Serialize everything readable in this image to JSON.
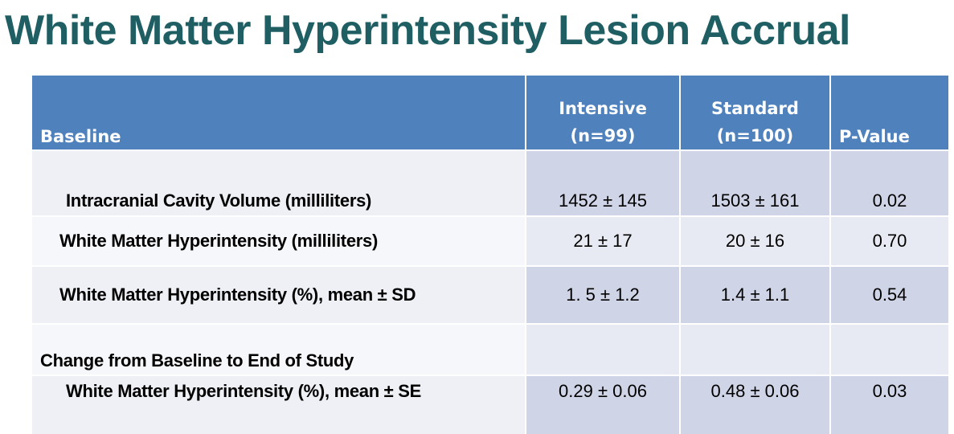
{
  "title": "White Matter Hyperintensity Lesion Accrual",
  "table": {
    "headers": {
      "label": "Baseline",
      "intensive_line1": "Intensive",
      "intensive_line2": "(n=99)",
      "standard_line1": "Standard",
      "standard_line2": "(n=100)",
      "p_value": "P-Value"
    },
    "rows": [
      {
        "label": "Intracranial Cavity Volume (milliliters)",
        "intensive": "1452 ± 145",
        "standard": "1503 ± 161",
        "p": "0.02"
      },
      {
        "label": "White Matter Hyperintensity  (milliliters)",
        "intensive": "21 ± 17",
        "standard": "20 ± 16",
        "p": "0.70"
      },
      {
        "label": "White Matter Hyperintensity (%), mean ± SD",
        "intensive": "1. 5 ± 1.2",
        "standard": "1.4 ± 1.1",
        "p": "0.54"
      },
      {
        "label": "Change from Baseline to End of Study",
        "intensive": "",
        "standard": "",
        "p": ""
      },
      {
        "label": "White Matter Hyperintensity (%), mean ± SE",
        "intensive": "0.29 ± 0.06",
        "standard": "0.48 ± 0.06",
        "p": "0.03"
      }
    ]
  },
  "colors": {
    "title": "#1f5f63",
    "header_bg": "#4f81bd",
    "row_label_bg": "#eef0f5",
    "row_value_bg": "#cfd5e6"
  }
}
